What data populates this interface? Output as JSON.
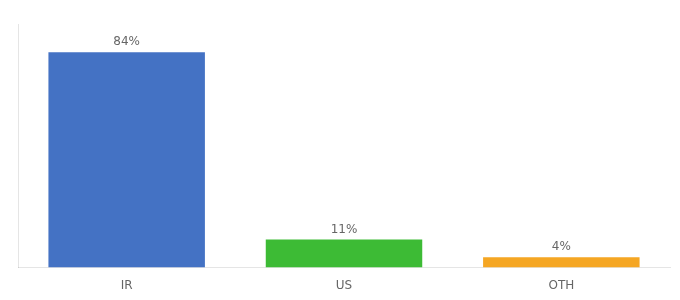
{
  "chart_data": {
    "type": "bar",
    "categories": [
      "IR",
      "US",
      "OTH"
    ],
    "values": [
      84,
      11,
      4
    ],
    "colors": [
      "#4472c4",
      "#3dbb35",
      "#f5a623"
    ],
    "ylim": [
      0,
      95
    ],
    "data_labels": true,
    "value_labels": [
      "84%",
      "11%",
      "4%"
    ],
    "tick_labels": "x",
    "grid": false
  }
}
